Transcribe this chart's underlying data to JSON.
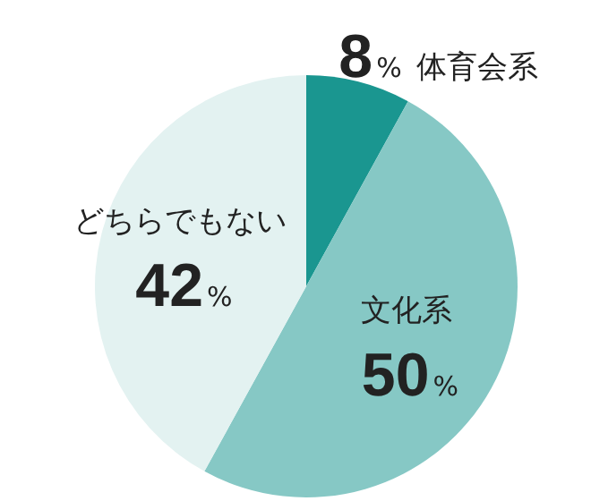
{
  "chart_data": {
    "type": "pie",
    "categories": [
      "体育会系",
      "文化系",
      "どちらでもない"
    ],
    "values": [
      8,
      50,
      42
    ],
    "value_labels": [
      "8%",
      "50%",
      "42%"
    ],
    "colors": [
      "#1a9690",
      "#86c8c5",
      "#e3f2f1"
    ]
  }
}
